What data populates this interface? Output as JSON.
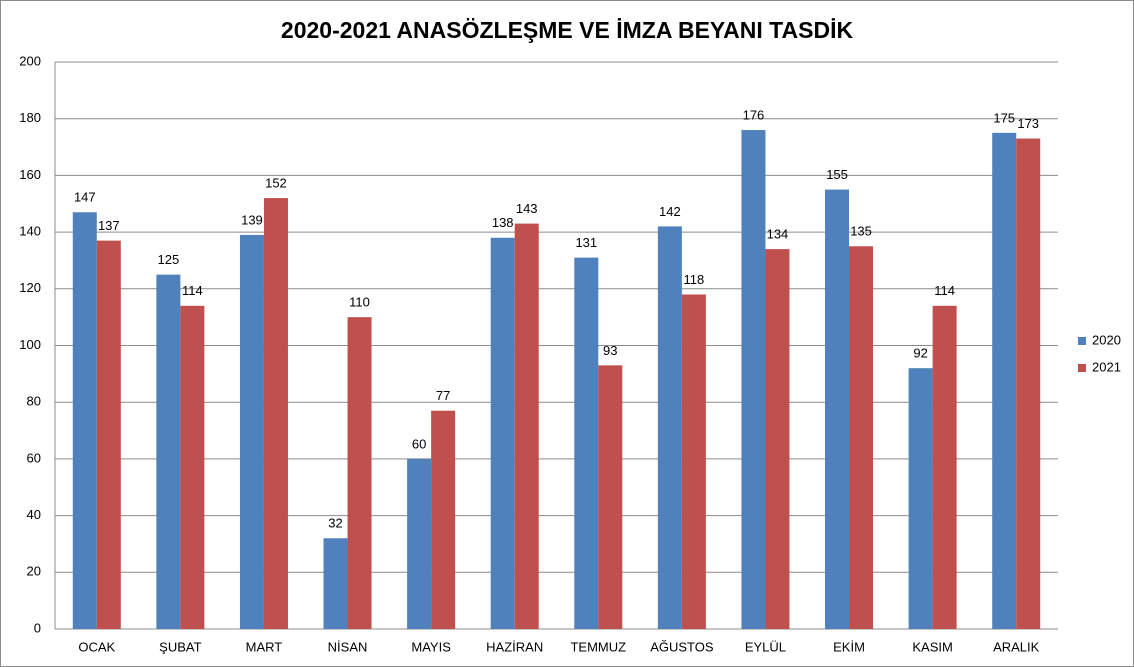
{
  "chart_data": {
    "type": "bar",
    "title": "2020-2021 ANASÖZLEŞME VE İMZA BEYANI TASDİK",
    "categories": [
      "OCAK",
      "ŞUBAT",
      "MART",
      "NİSAN",
      "MAYIS",
      "HAZİRAN",
      "TEMMUZ",
      "AĞUSTOS",
      "EYLÜL",
      "EKİM",
      "KASIM",
      "ARALIK"
    ],
    "series": [
      {
        "name": "2020",
        "color": "#4f81bd",
        "values": [
          147,
          125,
          139,
          32,
          60,
          138,
          131,
          142,
          176,
          155,
          92,
          175
        ]
      },
      {
        "name": "2021",
        "color": "#c0504d",
        "values": [
          137,
          114,
          152,
          110,
          77,
          143,
          93,
          118,
          134,
          135,
          114,
          173
        ]
      }
    ],
    "ylim": [
      0,
      200
    ],
    "yticks": [
      0,
      20,
      40,
      60,
      80,
      100,
      120,
      140,
      160,
      180,
      200
    ],
    "grid": true,
    "legend": "right"
  }
}
